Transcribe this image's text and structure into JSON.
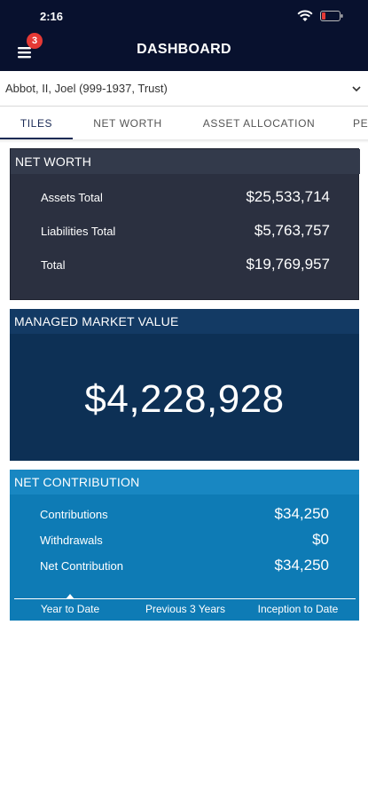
{
  "status_bar": {
    "time": "2:16"
  },
  "header": {
    "title": "DASHBOARD",
    "menu_badge": "3"
  },
  "account": {
    "selected": "Abbot, II, Joel (999-1937, Trust)"
  },
  "tabs": [
    {
      "label": "TILES",
      "active": true
    },
    {
      "label": "NET WORTH",
      "active": false
    },
    {
      "label": "ASSET ALLOCATION",
      "active": false
    },
    {
      "label": "PE",
      "active": false
    }
  ],
  "net_worth": {
    "title": "NET WORTH",
    "rows": [
      {
        "label": "Assets Total",
        "value": "$25,533,714"
      },
      {
        "label": "Liabilities Total",
        "value": "$5,763,757"
      },
      {
        "label": "Total",
        "value": "$19,769,957"
      }
    ]
  },
  "managed_market_value": {
    "title": "MANAGED MARKET VALUE",
    "value": "$4,228,928"
  },
  "net_contribution": {
    "title": "NET CONTRIBUTION",
    "rows": [
      {
        "label": "Contributions",
        "value": "$34,250"
      },
      {
        "label": "Withdrawals",
        "value": "$0"
      },
      {
        "label": "Net Contribution",
        "value": "$34,250"
      }
    ],
    "periods": [
      {
        "label": "Year to Date",
        "selected": true
      },
      {
        "label": "Previous 3 Years",
        "selected": false
      },
      {
        "label": "Inception to Date",
        "selected": false
      }
    ]
  },
  "colors": {
    "topbar": "#08112e",
    "net_worth_card": "#2b3040",
    "managed_card": "#0d3055",
    "contribution_card": "#0e7bb5",
    "badge": "#e53935",
    "battery_low": "#e53935"
  }
}
